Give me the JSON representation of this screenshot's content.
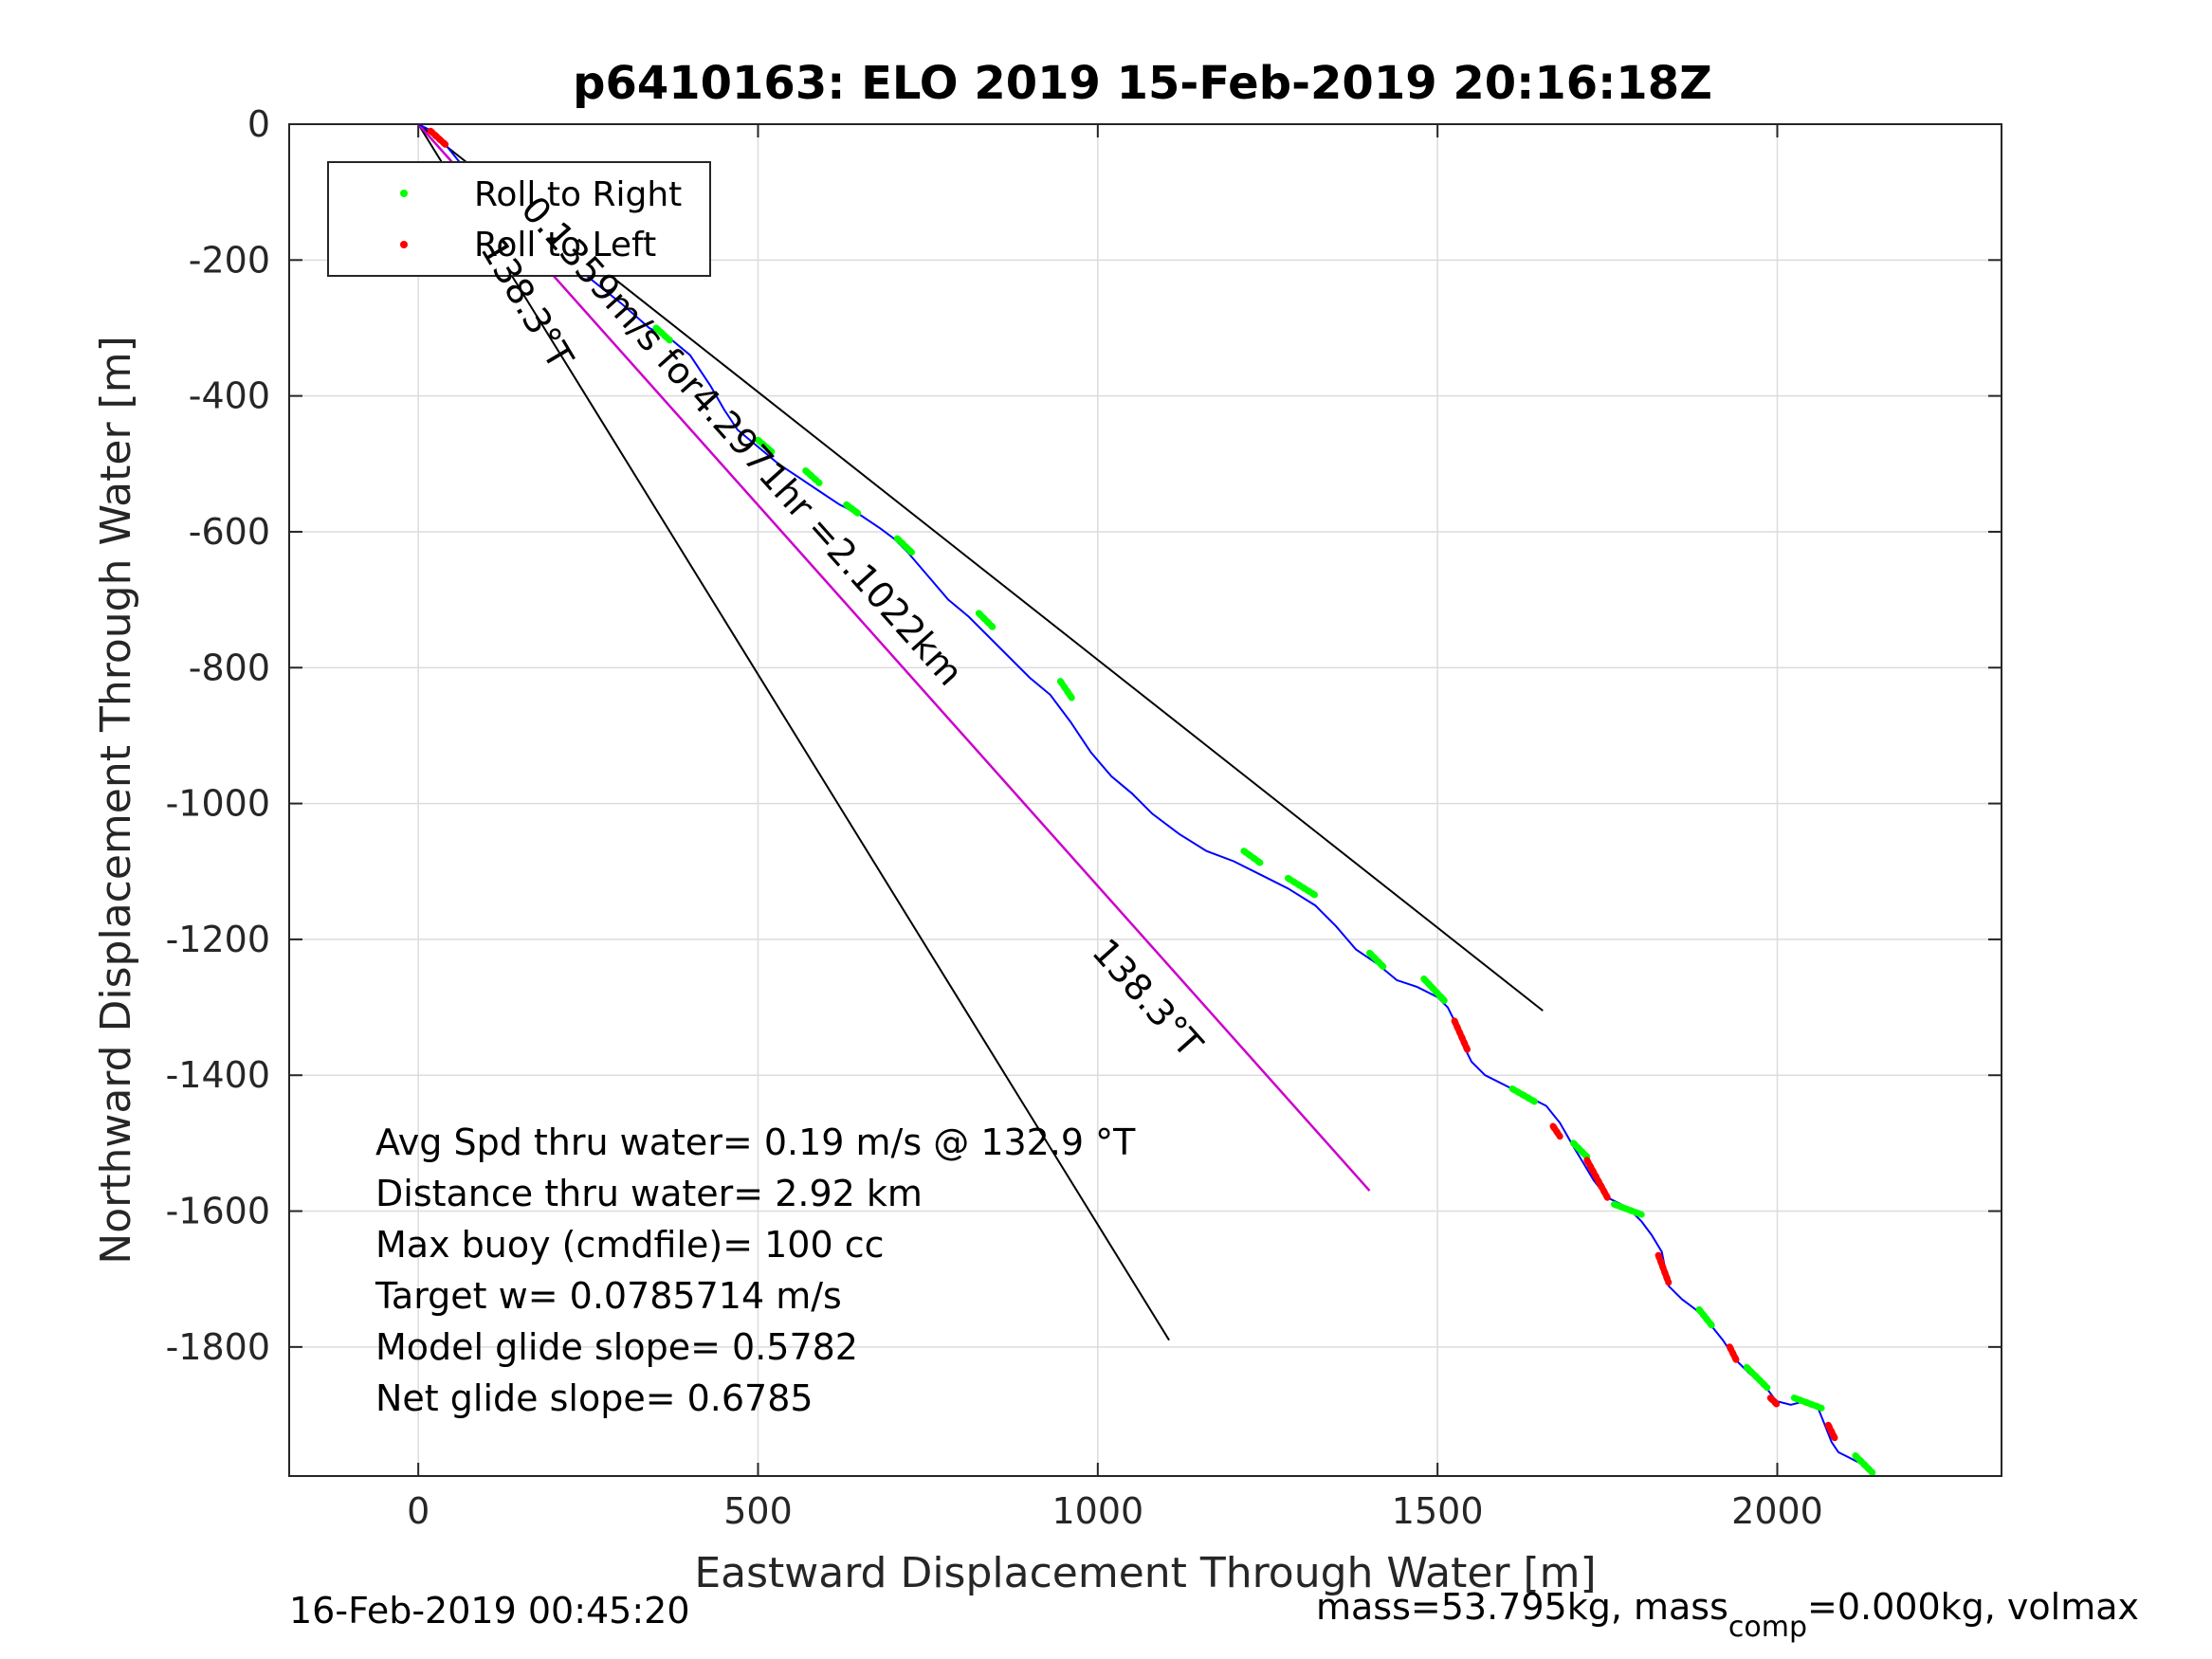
{
  "chart_data": {
    "type": "line",
    "title": "p6410163: ELO 2019 15-Feb-2019 20:16:18Z",
    "xlabel": "Eastward Displacement Through Water [m]",
    "ylabel": "Northward Displacement Through Water [m]",
    "xlim": [
      -190,
      2330
    ],
    "ylim": [
      -1990,
      0
    ],
    "xticks": [
      0,
      500,
      1000,
      1500,
      2000
    ],
    "yticks": [
      0,
      -200,
      -400,
      -600,
      -800,
      -1000,
      -1200,
      -1400,
      -1600,
      -1800
    ],
    "grid": true,
    "legend": {
      "placement": "top-left",
      "entries": [
        {
          "label": "Roll to Right",
          "color": "#00ff00"
        },
        {
          "label": "Roll to Left",
          "color": "#ff0000"
        }
      ]
    },
    "colors": {
      "track": "#0000ff",
      "heading_line": "#cc00cc",
      "cone": "#000000"
    },
    "track": {
      "name": "glider track",
      "x": [
        0,
        20,
        40,
        60,
        80,
        110,
        150,
        200,
        250,
        300,
        340,
        370,
        400,
        430,
        450,
        470,
        500,
        530,
        560,
        590,
        620,
        650,
        680,
        700,
        720,
        750,
        780,
        810,
        840,
        870,
        900,
        930,
        960,
        990,
        1020,
        1050,
        1080,
        1120,
        1160,
        1200,
        1240,
        1280,
        1320,
        1350,
        1380,
        1410,
        1440,
        1470,
        1500,
        1515,
        1525,
        1535,
        1550,
        1570,
        1600,
        1630,
        1660,
        1680,
        1700,
        1715,
        1730,
        1750,
        1780,
        1800,
        1815,
        1830,
        1835,
        1840,
        1860,
        1880,
        1900,
        1920,
        1940,
        1960,
        1980,
        1995,
        2000,
        2020,
        2040,
        2060,
        2070,
        2080,
        2090,
        2100,
        2120,
        2140
      ],
      "y": [
        0,
        -10,
        -30,
        -55,
        -80,
        -105,
        -140,
        -185,
        -225,
        -265,
        -300,
        -315,
        -340,
        -385,
        -420,
        -450,
        -475,
        -500,
        -520,
        -540,
        -560,
        -575,
        -595,
        -610,
        -630,
        -665,
        -700,
        -725,
        -755,
        -785,
        -815,
        -840,
        -880,
        -925,
        -960,
        -985,
        -1015,
        -1045,
        -1070,
        -1085,
        -1105,
        -1125,
        -1150,
        -1180,
        -1215,
        -1235,
        -1260,
        -1270,
        -1285,
        -1300,
        -1320,
        -1350,
        -1380,
        -1400,
        -1415,
        -1430,
        -1445,
        -1470,
        -1505,
        -1530,
        -1555,
        -1580,
        -1595,
        -1615,
        -1635,
        -1660,
        -1685,
        -1710,
        -1730,
        -1745,
        -1765,
        -1790,
        -1820,
        -1840,
        -1855,
        -1875,
        -1880,
        -1885,
        -1880,
        -1890,
        -1915,
        -1940,
        -1955,
        -1960,
        -1970,
        -1985
      ]
    },
    "heading_line": {
      "x": [
        0,
        1400
      ],
      "y": [
        0,
        -1570
      ]
    },
    "cone": [
      {
        "x": [
          0,
          1655
        ],
        "y": [
          0,
          -1305
        ]
      },
      {
        "x": [
          0,
          1105
        ],
        "y": [
          0,
          -1790
        ]
      }
    ],
    "roll_right_segments": [
      [
        [
          200,
          -185
        ],
        [
          215,
          -198
        ]
      ],
      [
        [
          350,
          -300
        ],
        [
          370,
          -318
        ]
      ],
      [
        [
          500,
          -465
        ],
        [
          520,
          -482
        ]
      ],
      [
        [
          570,
          -510
        ],
        [
          590,
          -528
        ]
      ],
      [
        [
          630,
          -560
        ],
        [
          650,
          -575
        ]
      ],
      [
        [
          705,
          -610
        ],
        [
          728,
          -632
        ]
      ],
      [
        [
          825,
          -720
        ],
        [
          845,
          -740
        ]
      ],
      [
        [
          945,
          -820
        ],
        [
          962,
          -845
        ]
      ],
      [
        [
          1215,
          -1070
        ],
        [
          1240,
          -1088
        ]
      ],
      [
        [
          1280,
          -1110
        ],
        [
          1320,
          -1135
        ]
      ],
      [
        [
          1400,
          -1220
        ],
        [
          1420,
          -1240
        ]
      ],
      [
        [
          1480,
          -1258
        ],
        [
          1510,
          -1290
        ]
      ],
      [
        [
          1610,
          -1420
        ],
        [
          1645,
          -1440
        ]
      ],
      [
        [
          1700,
          -1500
        ],
        [
          1720,
          -1520
        ]
      ],
      [
        [
          1760,
          -1590
        ],
        [
          1800,
          -1605
        ]
      ],
      [
        [
          1885,
          -1745
        ],
        [
          1905,
          -1770
        ]
      ],
      [
        [
          1955,
          -1830
        ],
        [
          1985,
          -1860
        ]
      ],
      [
        [
          2025,
          -1875
        ],
        [
          2065,
          -1890
        ]
      ],
      [
        [
          2115,
          -1960
        ],
        [
          2140,
          -1985
        ]
      ]
    ],
    "roll_left_segments": [
      [
        [
          18,
          -10
        ],
        [
          40,
          -30
        ]
      ],
      [
        [
          70,
          -60
        ],
        [
          80,
          -75
        ]
      ],
      [
        [
          1525,
          -1320
        ],
        [
          1545,
          -1365
        ]
      ],
      [
        [
          1670,
          -1475
        ],
        [
          1680,
          -1490
        ]
      ],
      [
        [
          1720,
          -1525
        ],
        [
          1750,
          -1580
        ]
      ],
      [
        [
          1825,
          -1665
        ],
        [
          1840,
          -1705
        ]
      ],
      [
        [
          1930,
          -1800
        ],
        [
          1940,
          -1820
        ]
      ],
      [
        [
          1990,
          -1875
        ],
        [
          2000,
          -1885
        ]
      ],
      [
        [
          2075,
          -1915
        ],
        [
          2085,
          -1935
        ]
      ]
    ],
    "annotations": {
      "along_track": "0.1359m/s for4.2971hr =2.1022km",
      "cone_left": "138.3°T",
      "heading_end": "138.3°T"
    },
    "stats": [
      "Avg Spd thru water=  0.19 m/s @ 132.9 °T",
      "Distance thru water=  2.92 km",
      "Max buoy (cmdfile)= 100 cc",
      "Target w= 0.0785714 m/s",
      "Model glide slope= 0.5782",
      "Net glide slope= 0.6785"
    ]
  },
  "footer": {
    "timestamp": "16-Feb-2019 00:45:20",
    "mass_prefix": "mass=53.795kg, mass",
    "mass_sub": "comp",
    "mass_suffix": "=0.000kg, volmax"
  }
}
